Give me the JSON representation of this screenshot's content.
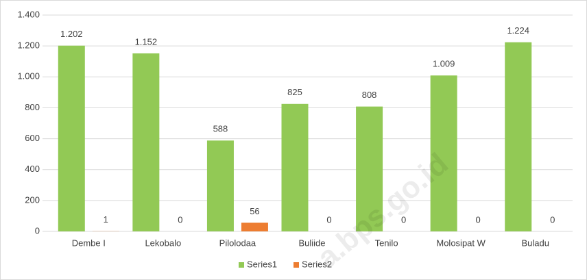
{
  "chart_data": {
    "type": "bar",
    "categories": [
      "Dembe I",
      "Lekobalo",
      "Pilolodaa",
      "Buliide",
      "Tenilo",
      "Molosipat W",
      "Buladu"
    ],
    "series": [
      {
        "name": "Series1",
        "color": "#92c955",
        "values": [
          1202,
          1152,
          588,
          825,
          808,
          1009,
          1224
        ],
        "value_labels": [
          "1.202",
          "1.152",
          "588",
          "825",
          "808",
          "1.009",
          "1.224"
        ]
      },
      {
        "name": "Series2",
        "color": "#ed7d31",
        "values": [
          1,
          0,
          56,
          0,
          0,
          0,
          0
        ]
      }
    ],
    "ylim": [
      0,
      1400
    ],
    "yticks": [
      0,
      200,
      400,
      600,
      800,
      {
        "value": 1000,
        "label": "1.000"
      },
      {
        "value": 1200,
        "label": "1.200"
      },
      {
        "value": 1400,
        "label": "1.400"
      }
    ],
    "grid": true,
    "legend": "bottom",
    "watermark": "a.bps.go.id"
  }
}
